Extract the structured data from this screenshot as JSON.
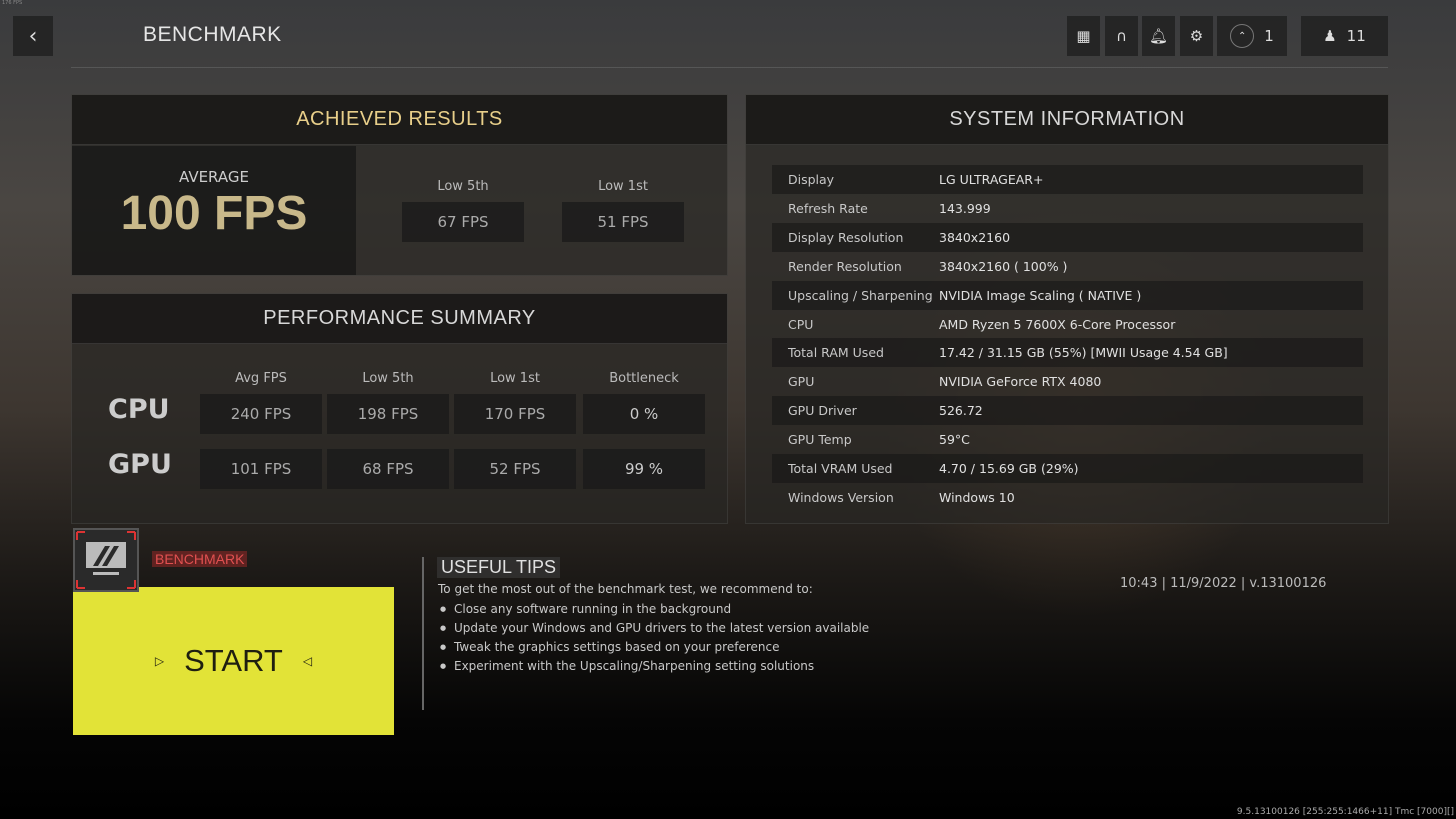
{
  "fps_counter": "176 FPS",
  "header": {
    "title": "BENCHMARK",
    "back_icon": "chevron-left-icon",
    "party_count": "1",
    "players_count": "11"
  },
  "achieved": {
    "title": "ACHIEVED RESULTS",
    "average_label": "AVERAGE",
    "average_value": "100 FPS",
    "low5_label": "Low 5th",
    "low5_value": "67 FPS",
    "low1_label": "Low 1st",
    "low1_value": "51 FPS",
    "title_color": "#e8cf8a",
    "average_color": "#c8b88a"
  },
  "performance": {
    "title": "PERFORMANCE SUMMARY",
    "columns": [
      "Avg FPS",
      "Low 5th",
      "Low 1st",
      "Bottleneck"
    ],
    "rows": [
      {
        "name": "CPU",
        "values": [
          "240 FPS",
          "198 FPS",
          "170 FPS",
          "0 %"
        ]
      },
      {
        "name": "GPU",
        "values": [
          "101 FPS",
          "68 FPS",
          "52 FPS",
          "99 %"
        ]
      }
    ]
  },
  "system": {
    "title": "SYSTEM INFORMATION",
    "rows": [
      {
        "k": "Display",
        "v": "LG ULTRAGEAR+"
      },
      {
        "k": "Refresh Rate",
        "v": "143.999"
      },
      {
        "k": "Display Resolution",
        "v": "3840x2160"
      },
      {
        "k": "Render Resolution",
        "v": "3840x2160 ( 100% )"
      },
      {
        "k": "Upscaling / Sharpening",
        "v": "NVIDIA Image Scaling ( NATIVE )"
      },
      {
        "k": "CPU",
        "v": "AMD Ryzen 5 7600X 6-Core Processor"
      },
      {
        "k": "Total RAM Used",
        "v": "17.42 / 31.15 GB (55%) [MWII Usage 4.54 GB]"
      },
      {
        "k": "GPU",
        "v": "NVIDIA GeForce RTX 4080"
      },
      {
        "k": "GPU Driver",
        "v": "526.72"
      },
      {
        "k": "GPU Temp",
        "v": "59°C"
      },
      {
        "k": "Total VRAM Used",
        "v": "4.70 / 15.69 GB (29%)"
      },
      {
        "k": "Windows Version",
        "v": "Windows 10"
      }
    ]
  },
  "start": {
    "tag": "BENCHMARK",
    "label": "START",
    "color": "#e2e337"
  },
  "tips": {
    "title": "USEFUL TIPS",
    "intro": "To get the most out of the benchmark test, we recommend to:",
    "items": [
      "Close any software running in the background",
      "Update your Windows and GPU drivers to the latest version available",
      "Tweak the graphics settings based on your preference",
      "Experiment with the Upscaling/Sharpening setting solutions"
    ]
  },
  "timestamp": "10:43 | 11/9/2022 | v.13100126",
  "build": "9.5.13100126 [255:255:1466+11] Tmc [7000][]"
}
